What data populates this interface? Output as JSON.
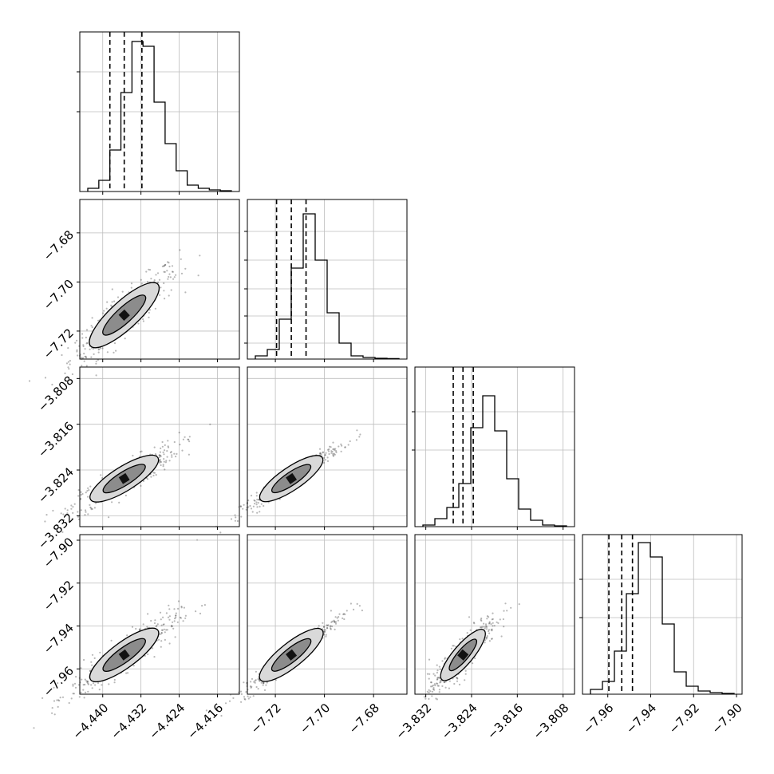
{
  "chart_data": {
    "type": "corner",
    "n_params": 4,
    "grid": true,
    "contour_color": "#000000",
    "scatter_color": "#555555",
    "params": [
      {
        "median": -4.4355,
        "q16": -4.4385,
        "q84": -4.4318,
        "ticks": [
          "−4.440",
          "−4.432",
          "−4.424",
          "−4.416"
        ],
        "tick_values": [
          -4.44,
          -4.432,
          -4.424,
          -4.416
        ],
        "range": [
          -4.4448,
          -4.4114
        ]
      },
      {
        "median": -7.7135,
        "q16": -7.7195,
        "q84": -7.7075,
        "ticks": [
          "−7.72",
          "−7.70",
          "−7.68"
        ],
        "tick_values": [
          -7.72,
          -7.7,
          -7.68
        ],
        "range": [
          -7.7314,
          -7.6664
        ]
      },
      {
        "median": -3.8255,
        "q16": -3.8272,
        "q84": -3.8237,
        "ticks": [
          "−3.832",
          "−3.824",
          "−3.816",
          "−3.808"
        ],
        "tick_values": [
          -3.832,
          -3.824,
          -3.816,
          -3.808
        ],
        "range": [
          -3.8339,
          -3.806
        ]
      },
      {
        "median": -7.9535,
        "q16": -7.9595,
        "q84": -7.9485,
        "ticks": [
          "−7.96",
          "−7.94",
          "−7.92",
          "−7.90"
        ],
        "tick_values": [
          -7.96,
          -7.94,
          -7.92,
          -7.9
        ],
        "range": [
          -7.9718,
          -7.8974
        ]
      }
    ],
    "hist_counts": [
      [
        0.02,
        0.07,
        0.26,
        0.62,
        0.94,
        0.91,
        0.56,
        0.3,
        0.13,
        0.04,
        0.02,
        0.01,
        0.005
      ],
      [
        0.02,
        0.06,
        0.25,
        0.57,
        0.91,
        0.62,
        0.29,
        0.1,
        0.02,
        0.01,
        0.005,
        0.003
      ],
      [
        0.01,
        0.05,
        0.12,
        0.27,
        0.62,
        0.82,
        0.6,
        0.3,
        0.11,
        0.04,
        0.01,
        0.005
      ],
      [
        0.03,
        0.08,
        0.27,
        0.63,
        0.95,
        0.86,
        0.44,
        0.14,
        0.05,
        0.02,
        0.01,
        0.005
      ]
    ],
    "y_ticks_hist": [
      [
        0.5,
        0.75
      ],
      [
        0.1,
        0.27,
        0.44,
        0.62,
        0.8
      ],
      [
        0.48,
        0.72
      ],
      [
        0.48,
        0.72
      ]
    ]
  }
}
